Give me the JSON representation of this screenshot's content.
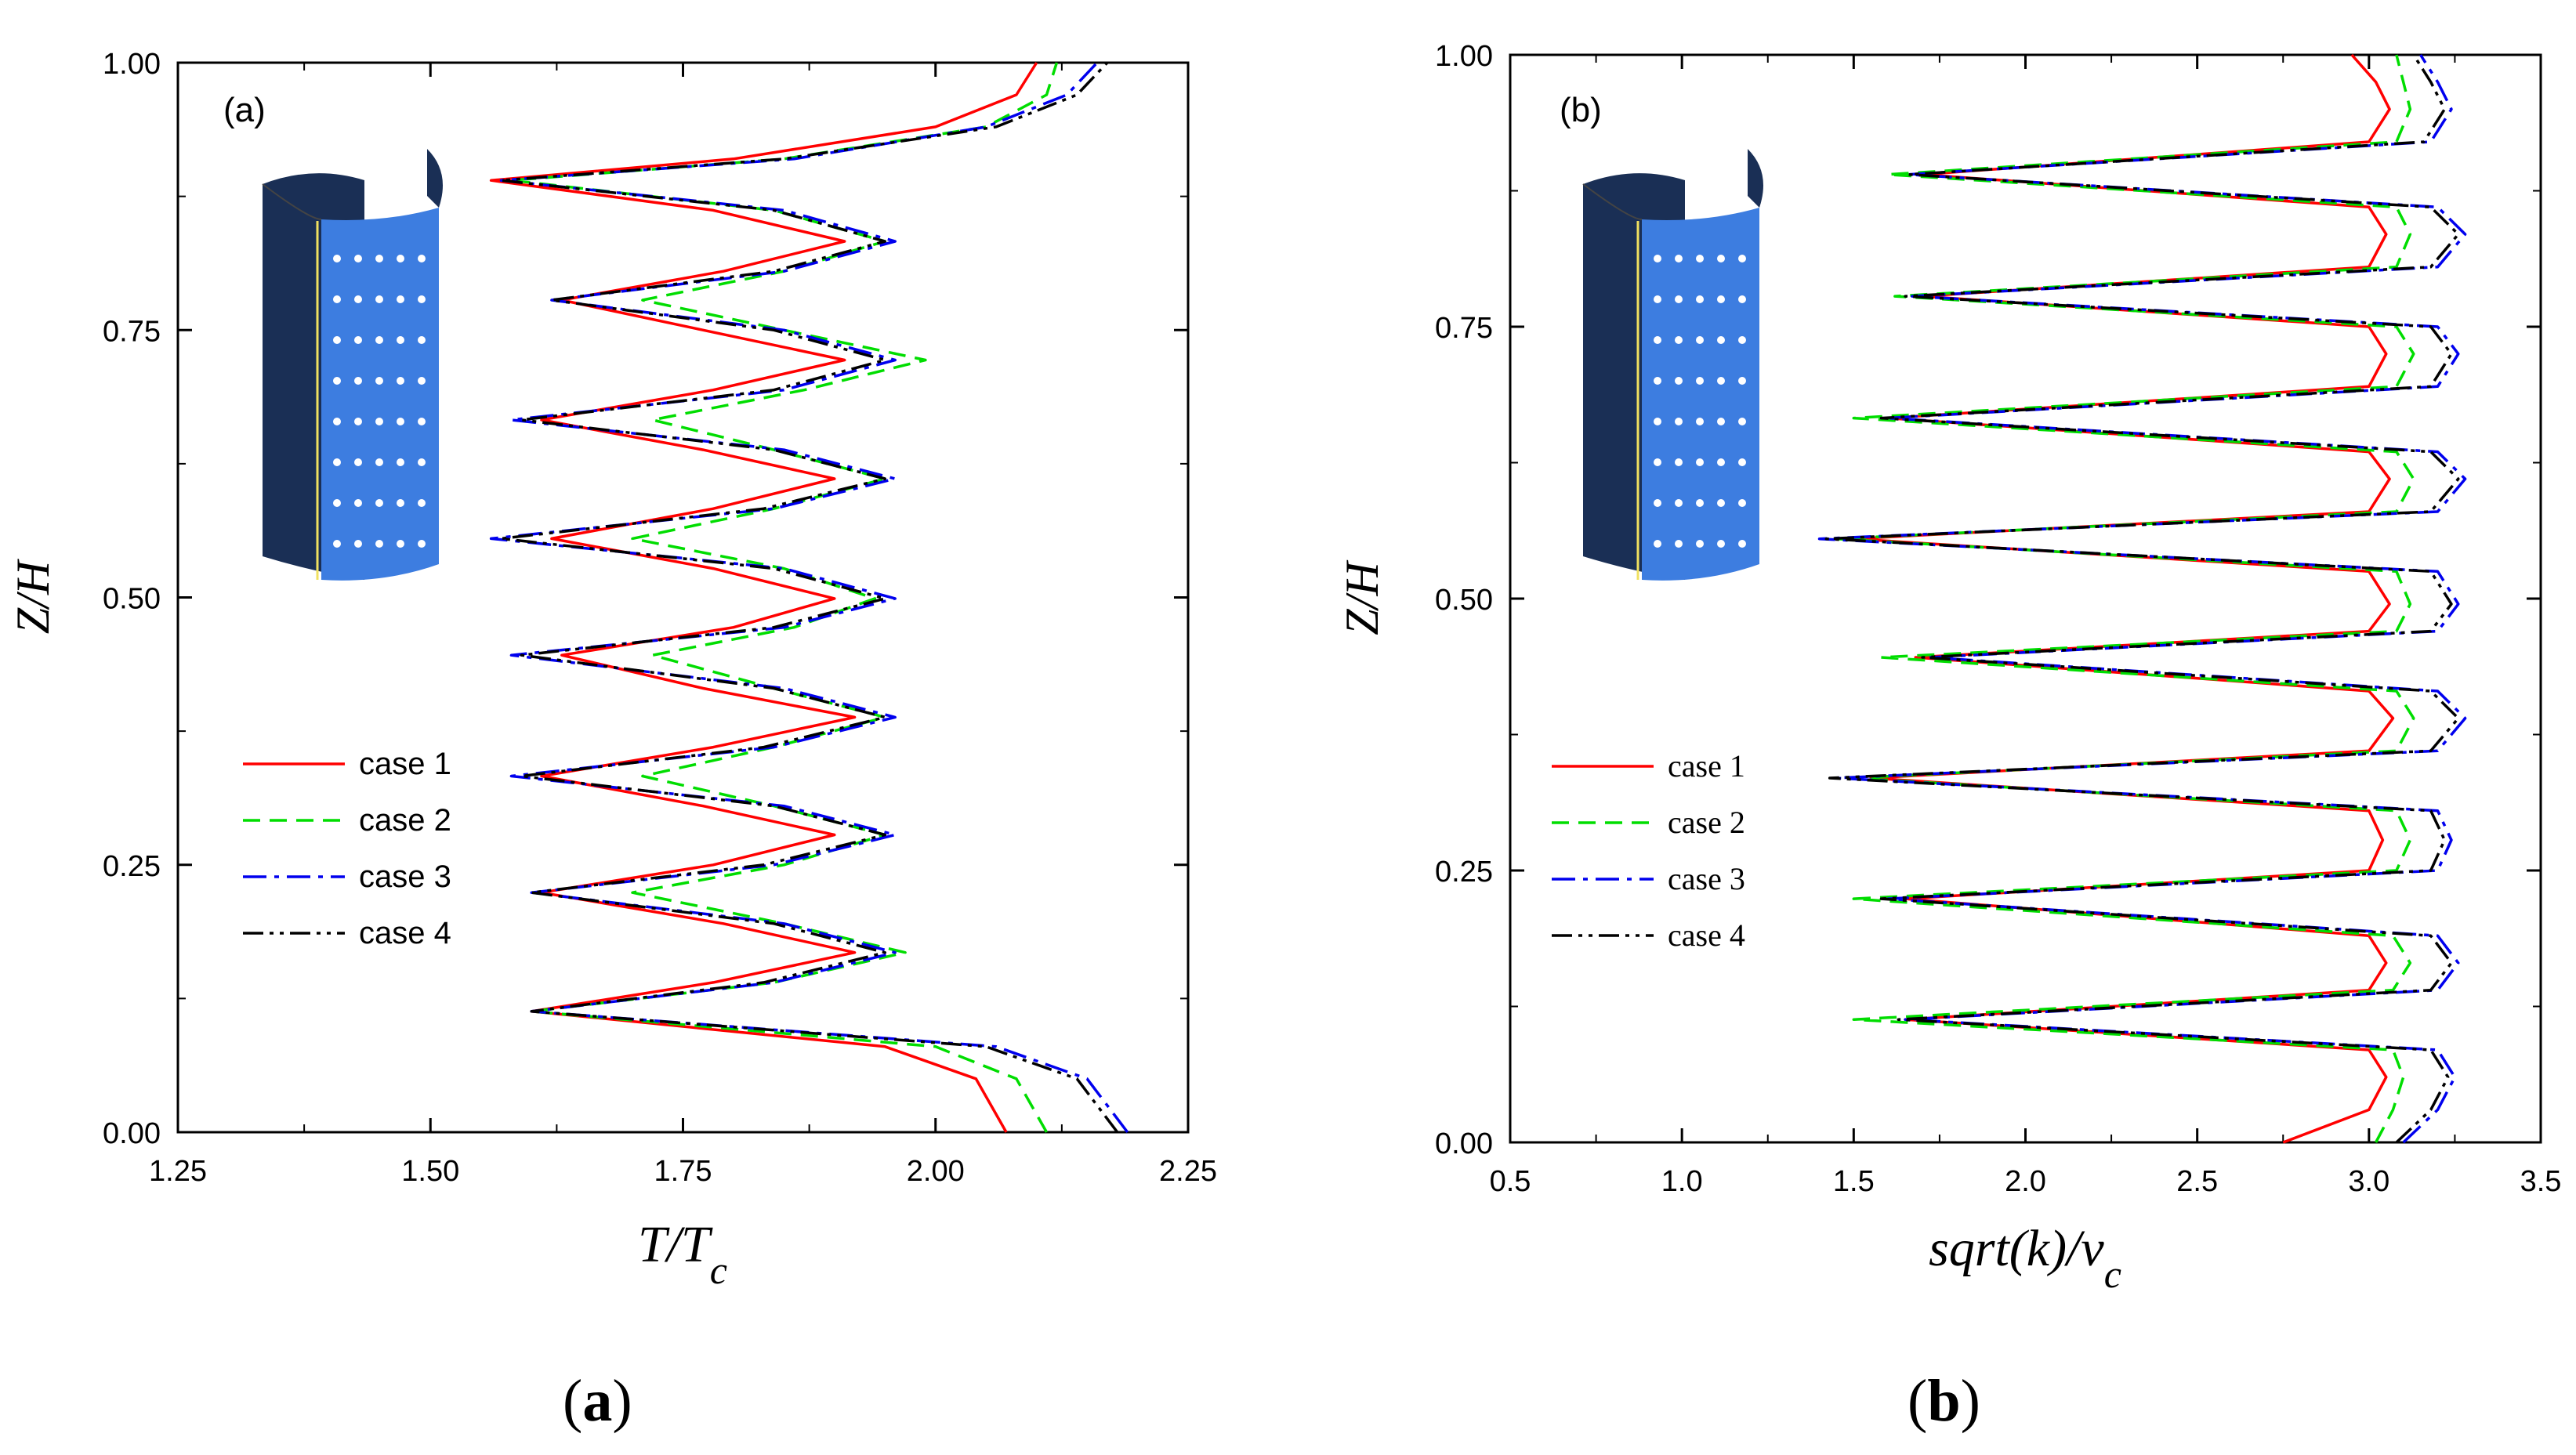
{
  "colors": {
    "case1": "#ff0000",
    "case2": "#00dd00",
    "case3": "#0000ee",
    "case4": "#000000",
    "cylinder": "#3d7de0",
    "cylinder_dark": "#1a2f55"
  },
  "captions": {
    "a_open": "(",
    "a_letter": "a",
    "a_close": ")",
    "b_open": "(",
    "b_letter": "b",
    "b_close": ")"
  },
  "chart_data": [
    {
      "panel": "(a)",
      "type": "line",
      "xlabel": "T/Tc",
      "xlabel_main": "T/T",
      "xlabel_sub": "c",
      "ylabel": "Z/H",
      "xlim": [
        1.25,
        2.25
      ],
      "ylim": [
        0.0,
        1.0
      ],
      "xticks": [
        "1.25",
        "1.50",
        "1.75",
        "2.00",
        "2.25"
      ],
      "yticks": [
        "0.00",
        "0.25",
        "0.50",
        "0.75",
        "1.00"
      ],
      "legend": [
        "case 1",
        "case 2",
        "case 3",
        "case 4"
      ],
      "legend_position": "lower-left",
      "series": [
        {
          "name": "case 1",
          "style": "solid",
          "z": [
            0.0,
            0.05,
            0.08,
            0.113,
            0.14,
            0.168,
            0.195,
            0.224,
            0.25,
            0.278,
            0.305,
            0.333,
            0.36,
            0.388,
            0.415,
            0.446,
            0.472,
            0.499,
            0.527,
            0.555,
            0.583,
            0.611,
            0.638,
            0.666,
            0.694,
            0.722,
            0.75,
            0.778,
            0.805,
            0.833,
            0.862,
            0.89,
            0.91,
            0.94,
            0.97,
            1.0
          ],
          "x": [
            2.07,
            2.04,
            1.95,
            1.6,
            1.78,
            1.92,
            1.79,
            1.61,
            1.78,
            1.9,
            1.77,
            1.61,
            1.78,
            1.92,
            1.77,
            1.63,
            1.8,
            1.9,
            1.78,
            1.62,
            1.78,
            1.9,
            1.77,
            1.61,
            1.78,
            1.91,
            1.77,
            1.63,
            1.79,
            1.91,
            1.78,
            1.56,
            1.8,
            2.0,
            2.08,
            2.1
          ]
        },
        {
          "name": "case 2",
          "style": "dashed",
          "z": [
            0.0,
            0.05,
            0.08,
            0.113,
            0.14,
            0.168,
            0.195,
            0.224,
            0.25,
            0.278,
            0.305,
            0.333,
            0.36,
            0.388,
            0.415,
            0.446,
            0.472,
            0.499,
            0.527,
            0.555,
            0.583,
            0.611,
            0.638,
            0.666,
            0.694,
            0.722,
            0.75,
            0.778,
            0.805,
            0.833,
            0.862,
            0.89,
            0.91,
            0.94,
            0.97,
            1.0
          ],
          "x": [
            2.11,
            2.08,
            2.0,
            1.6,
            1.84,
            1.97,
            1.85,
            1.7,
            1.85,
            1.95,
            1.84,
            1.71,
            1.84,
            1.95,
            1.84,
            1.72,
            1.86,
            1.94,
            1.85,
            1.7,
            1.84,
            1.95,
            1.84,
            1.72,
            1.87,
            1.99,
            1.85,
            1.71,
            1.85,
            1.95,
            1.84,
            1.58,
            1.85,
            2.05,
            2.11,
            2.12
          ]
        },
        {
          "name": "case 3",
          "style": "dashdot",
          "z": [
            0.0,
            0.05,
            0.08,
            0.113,
            0.14,
            0.168,
            0.195,
            0.224,
            0.25,
            0.278,
            0.305,
            0.333,
            0.36,
            0.388,
            0.415,
            0.446,
            0.472,
            0.499,
            0.527,
            0.555,
            0.583,
            0.611,
            0.638,
            0.666,
            0.694,
            0.722,
            0.75,
            0.778,
            0.805,
            0.833,
            0.862,
            0.89,
            0.91,
            0.94,
            0.97,
            1.0
          ],
          "x": [
            2.19,
            2.15,
            2.06,
            1.6,
            1.84,
            1.96,
            1.85,
            1.6,
            1.84,
            1.96,
            1.85,
            1.58,
            1.84,
            1.96,
            1.85,
            1.58,
            1.85,
            1.96,
            1.85,
            1.56,
            1.84,
            1.96,
            1.85,
            1.58,
            1.85,
            1.96,
            1.85,
            1.62,
            1.85,
            1.96,
            1.85,
            1.57,
            1.86,
            2.05,
            2.13,
            2.16
          ]
        },
        {
          "name": "case 4",
          "style": "dashdotdot",
          "z": [
            0.0,
            0.05,
            0.08,
            0.113,
            0.14,
            0.168,
            0.195,
            0.224,
            0.25,
            0.278,
            0.305,
            0.333,
            0.36,
            0.388,
            0.415,
            0.446,
            0.472,
            0.499,
            0.527,
            0.555,
            0.583,
            0.611,
            0.638,
            0.666,
            0.694,
            0.722,
            0.75,
            0.778,
            0.805,
            0.833,
            0.862,
            0.89,
            0.91,
            0.94,
            0.97,
            1.0
          ],
          "x": [
            2.18,
            2.14,
            2.05,
            1.6,
            1.83,
            1.95,
            1.84,
            1.6,
            1.83,
            1.95,
            1.84,
            1.59,
            1.83,
            1.95,
            1.84,
            1.59,
            1.84,
            1.95,
            1.84,
            1.57,
            1.83,
            1.95,
            1.84,
            1.59,
            1.84,
            1.95,
            1.84,
            1.62,
            1.84,
            1.95,
            1.84,
            1.57,
            1.85,
            2.06,
            2.14,
            2.17
          ]
        }
      ]
    },
    {
      "panel": "(b)",
      "type": "line",
      "xlabel": "sqrt(k)/vc",
      "xlabel_main": "sqrt(k)/v",
      "xlabel_sub": "c",
      "ylabel": "Z/H",
      "xlim": [
        0.5,
        3.5
      ],
      "ylim": [
        0.0,
        1.0
      ],
      "xticks": [
        "0.5",
        "1.0",
        "1.5",
        "2.0",
        "2.5",
        "3.0",
        "3.5"
      ],
      "yticks": [
        "0.00",
        "0.25",
        "0.50",
        "0.75",
        "1.00"
      ],
      "legend": [
        "case 1",
        "case 2",
        "case 3",
        "case 4"
      ],
      "legend_position": "lower-left",
      "series": [
        {
          "name": "case 1",
          "style": "solid",
          "z": [
            0.0,
            0.03,
            0.06,
            0.085,
            0.113,
            0.14,
            0.165,
            0.19,
            0.224,
            0.25,
            0.278,
            0.305,
            0.335,
            0.36,
            0.39,
            0.415,
            0.446,
            0.47,
            0.495,
            0.525,
            0.555,
            0.58,
            0.61,
            0.635,
            0.666,
            0.695,
            0.725,
            0.75,
            0.778,
            0.805,
            0.835,
            0.86,
            0.89,
            0.92,
            0.95,
            0.975,
            1.0
          ],
          "x": [
            2.75,
            3.0,
            3.05,
            3.0,
            1.65,
            3.0,
            3.05,
            3.0,
            1.65,
            3.0,
            3.04,
            3.0,
            1.55,
            3.0,
            3.07,
            3.0,
            1.68,
            3.0,
            3.06,
            3.0,
            1.5,
            3.0,
            3.06,
            3.0,
            1.6,
            3.0,
            3.05,
            3.0,
            1.7,
            3.0,
            3.05,
            3.0,
            1.7,
            3.0,
            3.06,
            3.02,
            2.95
          ]
        },
        {
          "name": "case 2",
          "style": "dashed",
          "z": [
            0.0,
            0.03,
            0.06,
            0.085,
            0.113,
            0.14,
            0.165,
            0.19,
            0.224,
            0.25,
            0.278,
            0.305,
            0.335,
            0.36,
            0.39,
            0.415,
            0.446,
            0.47,
            0.495,
            0.525,
            0.555,
            0.58,
            0.61,
            0.635,
            0.666,
            0.695,
            0.725,
            0.75,
            0.778,
            0.805,
            0.835,
            0.86,
            0.89,
            0.92,
            0.95,
            0.975,
            1.0
          ],
          "x": [
            3.02,
            3.07,
            3.1,
            3.07,
            1.5,
            3.07,
            3.12,
            3.07,
            1.5,
            3.08,
            3.12,
            3.08,
            1.5,
            3.08,
            3.13,
            3.08,
            1.58,
            3.08,
            3.12,
            3.08,
            1.45,
            3.08,
            3.13,
            3.08,
            1.5,
            3.08,
            3.13,
            3.08,
            1.62,
            3.08,
            3.12,
            3.08,
            1.6,
            3.08,
            3.12,
            3.1,
            3.08
          ]
        },
        {
          "name": "case 3",
          "style": "dashdot",
          "z": [
            0.0,
            0.03,
            0.06,
            0.085,
            0.113,
            0.14,
            0.165,
            0.19,
            0.224,
            0.25,
            0.278,
            0.305,
            0.335,
            0.36,
            0.39,
            0.415,
            0.446,
            0.47,
            0.495,
            0.525,
            0.555,
            0.58,
            0.61,
            0.635,
            0.666,
            0.695,
            0.725,
            0.75,
            0.778,
            0.805,
            0.835,
            0.86,
            0.89,
            0.92,
            0.95,
            0.975,
            1.0
          ],
          "x": [
            3.1,
            3.2,
            3.25,
            3.2,
            1.65,
            3.2,
            3.26,
            3.2,
            1.6,
            3.2,
            3.24,
            3.2,
            1.45,
            3.2,
            3.28,
            3.2,
            1.72,
            3.2,
            3.26,
            3.2,
            1.4,
            3.2,
            3.28,
            3.2,
            1.6,
            3.2,
            3.26,
            3.2,
            1.67,
            3.2,
            3.28,
            3.2,
            1.66,
            3.18,
            3.24,
            3.2,
            3.15
          ]
        },
        {
          "name": "case 4",
          "style": "dashdotdot",
          "z": [
            0.0,
            0.03,
            0.06,
            0.085,
            0.113,
            0.14,
            0.165,
            0.19,
            0.224,
            0.25,
            0.278,
            0.305,
            0.335,
            0.36,
            0.39,
            0.415,
            0.446,
            0.47,
            0.495,
            0.525,
            0.555,
            0.58,
            0.61,
            0.635,
            0.666,
            0.695,
            0.725,
            0.75,
            0.778,
            0.805,
            0.835,
            0.86,
            0.89,
            0.92,
            0.95,
            0.975,
            1.0
          ],
          "x": [
            3.08,
            3.18,
            3.23,
            3.18,
            1.63,
            3.18,
            3.24,
            3.18,
            1.58,
            3.18,
            3.22,
            3.18,
            1.43,
            3.18,
            3.26,
            3.18,
            1.7,
            3.18,
            3.24,
            3.18,
            1.42,
            3.18,
            3.26,
            3.18,
            1.58,
            3.18,
            3.24,
            3.18,
            1.65,
            3.18,
            3.26,
            3.18,
            1.66,
            3.16,
            3.22,
            3.18,
            3.13
          ]
        }
      ]
    }
  ]
}
